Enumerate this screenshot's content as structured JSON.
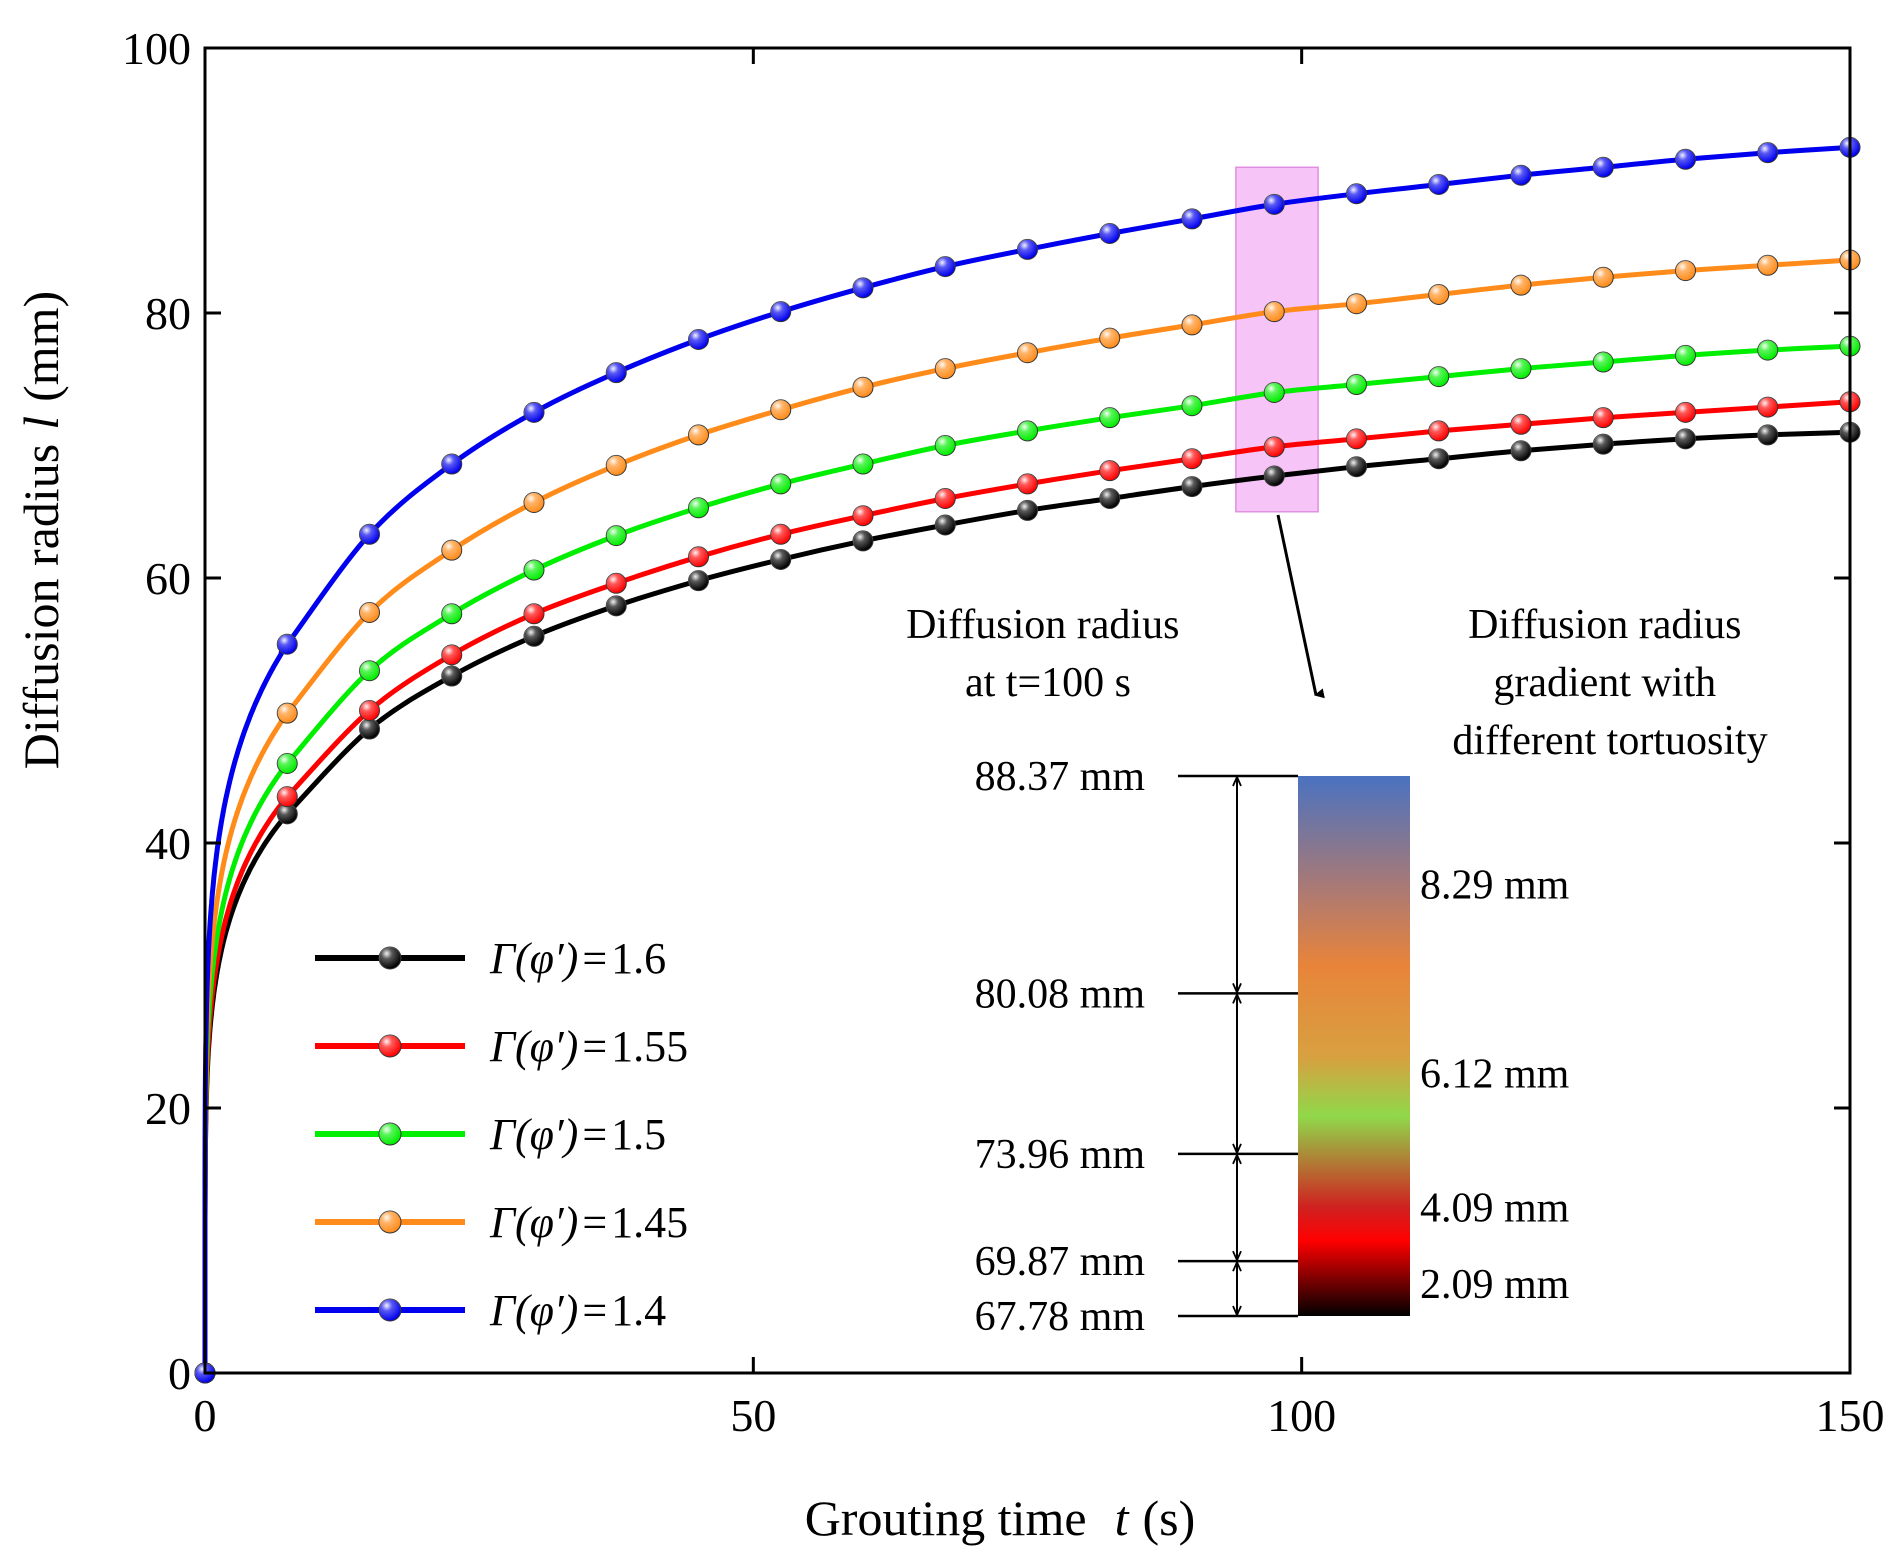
{
  "chart_data": {
    "type": "line",
    "title": "",
    "xlabel_main": "Grouting time",
    "xlabel_var": "t",
    "xlabel_unit": "(s)",
    "ylabel_main": "Diffusion radius",
    "ylabel_var": "l",
    "ylabel_unit": "(mm)",
    "xlim": [
      0,
      150
    ],
    "ylim": [
      0,
      100
    ],
    "xticks": [
      0,
      50,
      100,
      150
    ],
    "yticks": [
      0,
      20,
      40,
      60,
      80,
      100
    ],
    "xtick_labels": [
      "0",
      "50",
      "100",
      "150"
    ],
    "ytick_labels": [
      "0",
      "20",
      "40",
      "60",
      "80",
      "100"
    ],
    "legend_position": "bottom-left",
    "x": [
      0,
      7.5,
      15,
      22.5,
      30,
      37.5,
      45,
      52.5,
      60,
      67.5,
      75,
      82.5,
      90,
      97.5,
      105,
      112.5,
      120,
      127.5,
      135,
      142.5,
      150
    ],
    "series": [
      {
        "name": "Γ(φ′)=1.6",
        "legend_prefix": "Γ(φ′)",
        "legend_eq": "=",
        "legend_value": "1.6",
        "color": "#000000",
        "values": [
          0,
          42.2,
          48.6,
          52.6,
          55.6,
          57.9,
          59.8,
          61.4,
          62.8,
          64.0,
          65.1,
          66.0,
          66.9,
          67.7,
          68.4,
          69.0,
          69.6,
          70.1,
          70.5,
          70.8,
          71.0
        ]
      },
      {
        "name": "Γ(φ′)=1.55",
        "legend_prefix": "Γ(φ′)",
        "legend_eq": "=",
        "legend_value": "1.55",
        "color": "#ff0000",
        "values": [
          0,
          43.5,
          50.0,
          54.2,
          57.3,
          59.6,
          61.6,
          63.3,
          64.7,
          66.0,
          67.1,
          68.1,
          69.0,
          69.9,
          70.5,
          71.1,
          71.6,
          72.1,
          72.5,
          72.9,
          73.3
        ]
      },
      {
        "name": "Γ(φ′)=1.5",
        "legend_prefix": "Γ(φ′)",
        "legend_eq": "=",
        "legend_value": "1.5",
        "color": "#00ee00",
        "values": [
          0,
          46.0,
          53.0,
          57.3,
          60.6,
          63.2,
          65.3,
          67.1,
          68.6,
          70.0,
          71.1,
          72.1,
          73.0,
          74.0,
          74.6,
          75.2,
          75.8,
          76.3,
          76.8,
          77.2,
          77.5
        ]
      },
      {
        "name": "Γ(φ′)=1.45",
        "legend_prefix": "Γ(φ′)",
        "legend_eq": "=",
        "legend_value": "1.45",
        "color": "#ff8c1a",
        "values": [
          0,
          49.8,
          57.4,
          62.1,
          65.7,
          68.5,
          70.8,
          72.7,
          74.4,
          75.8,
          77.0,
          78.1,
          79.1,
          80.1,
          80.7,
          81.4,
          82.1,
          82.7,
          83.2,
          83.6,
          84.0
        ]
      },
      {
        "name": "Γ(φ′)=1.4",
        "legend_prefix": "Γ(φ′)",
        "legend_eq": "=",
        "legend_value": "1.4",
        "color": "#0000ee",
        "values": [
          0,
          55.0,
          63.3,
          68.6,
          72.5,
          75.5,
          78.0,
          80.1,
          81.9,
          83.5,
          84.8,
          86.0,
          87.1,
          88.2,
          89.0,
          89.7,
          90.4,
          91.0,
          91.6,
          92.1,
          92.5
        ]
      }
    ],
    "highlight": {
      "x_range": [
        94,
        101.5
      ],
      "y_range": [
        65,
        91
      ],
      "color": "#f0a8f0"
    },
    "annotations": {
      "left_title_line1": "Diffusion radius",
      "left_title_line2": "at t=100 s",
      "right_title_line1": "Diffusion radius",
      "right_title_line2": "gradient with",
      "right_title_line3": "different tortuosity",
      "radius_levels": [
        {
          "label": "88.37 mm",
          "value": 88.37
        },
        {
          "label": "80.08 mm",
          "value": 80.08
        },
        {
          "label": "73.96 mm",
          "value": 73.96
        },
        {
          "label": "69.87 mm",
          "value": 69.87
        },
        {
          "label": "67.78 mm",
          "value": 67.78
        }
      ],
      "gradient_labels": [
        "8.29 mm",
        "6.12 mm",
        "4.09 mm",
        "2.09 mm"
      ],
      "gradient_colors": [
        "#4a72c0",
        "#e8843a",
        "#90d84a",
        "#ff0000",
        "#000000"
      ]
    }
  }
}
